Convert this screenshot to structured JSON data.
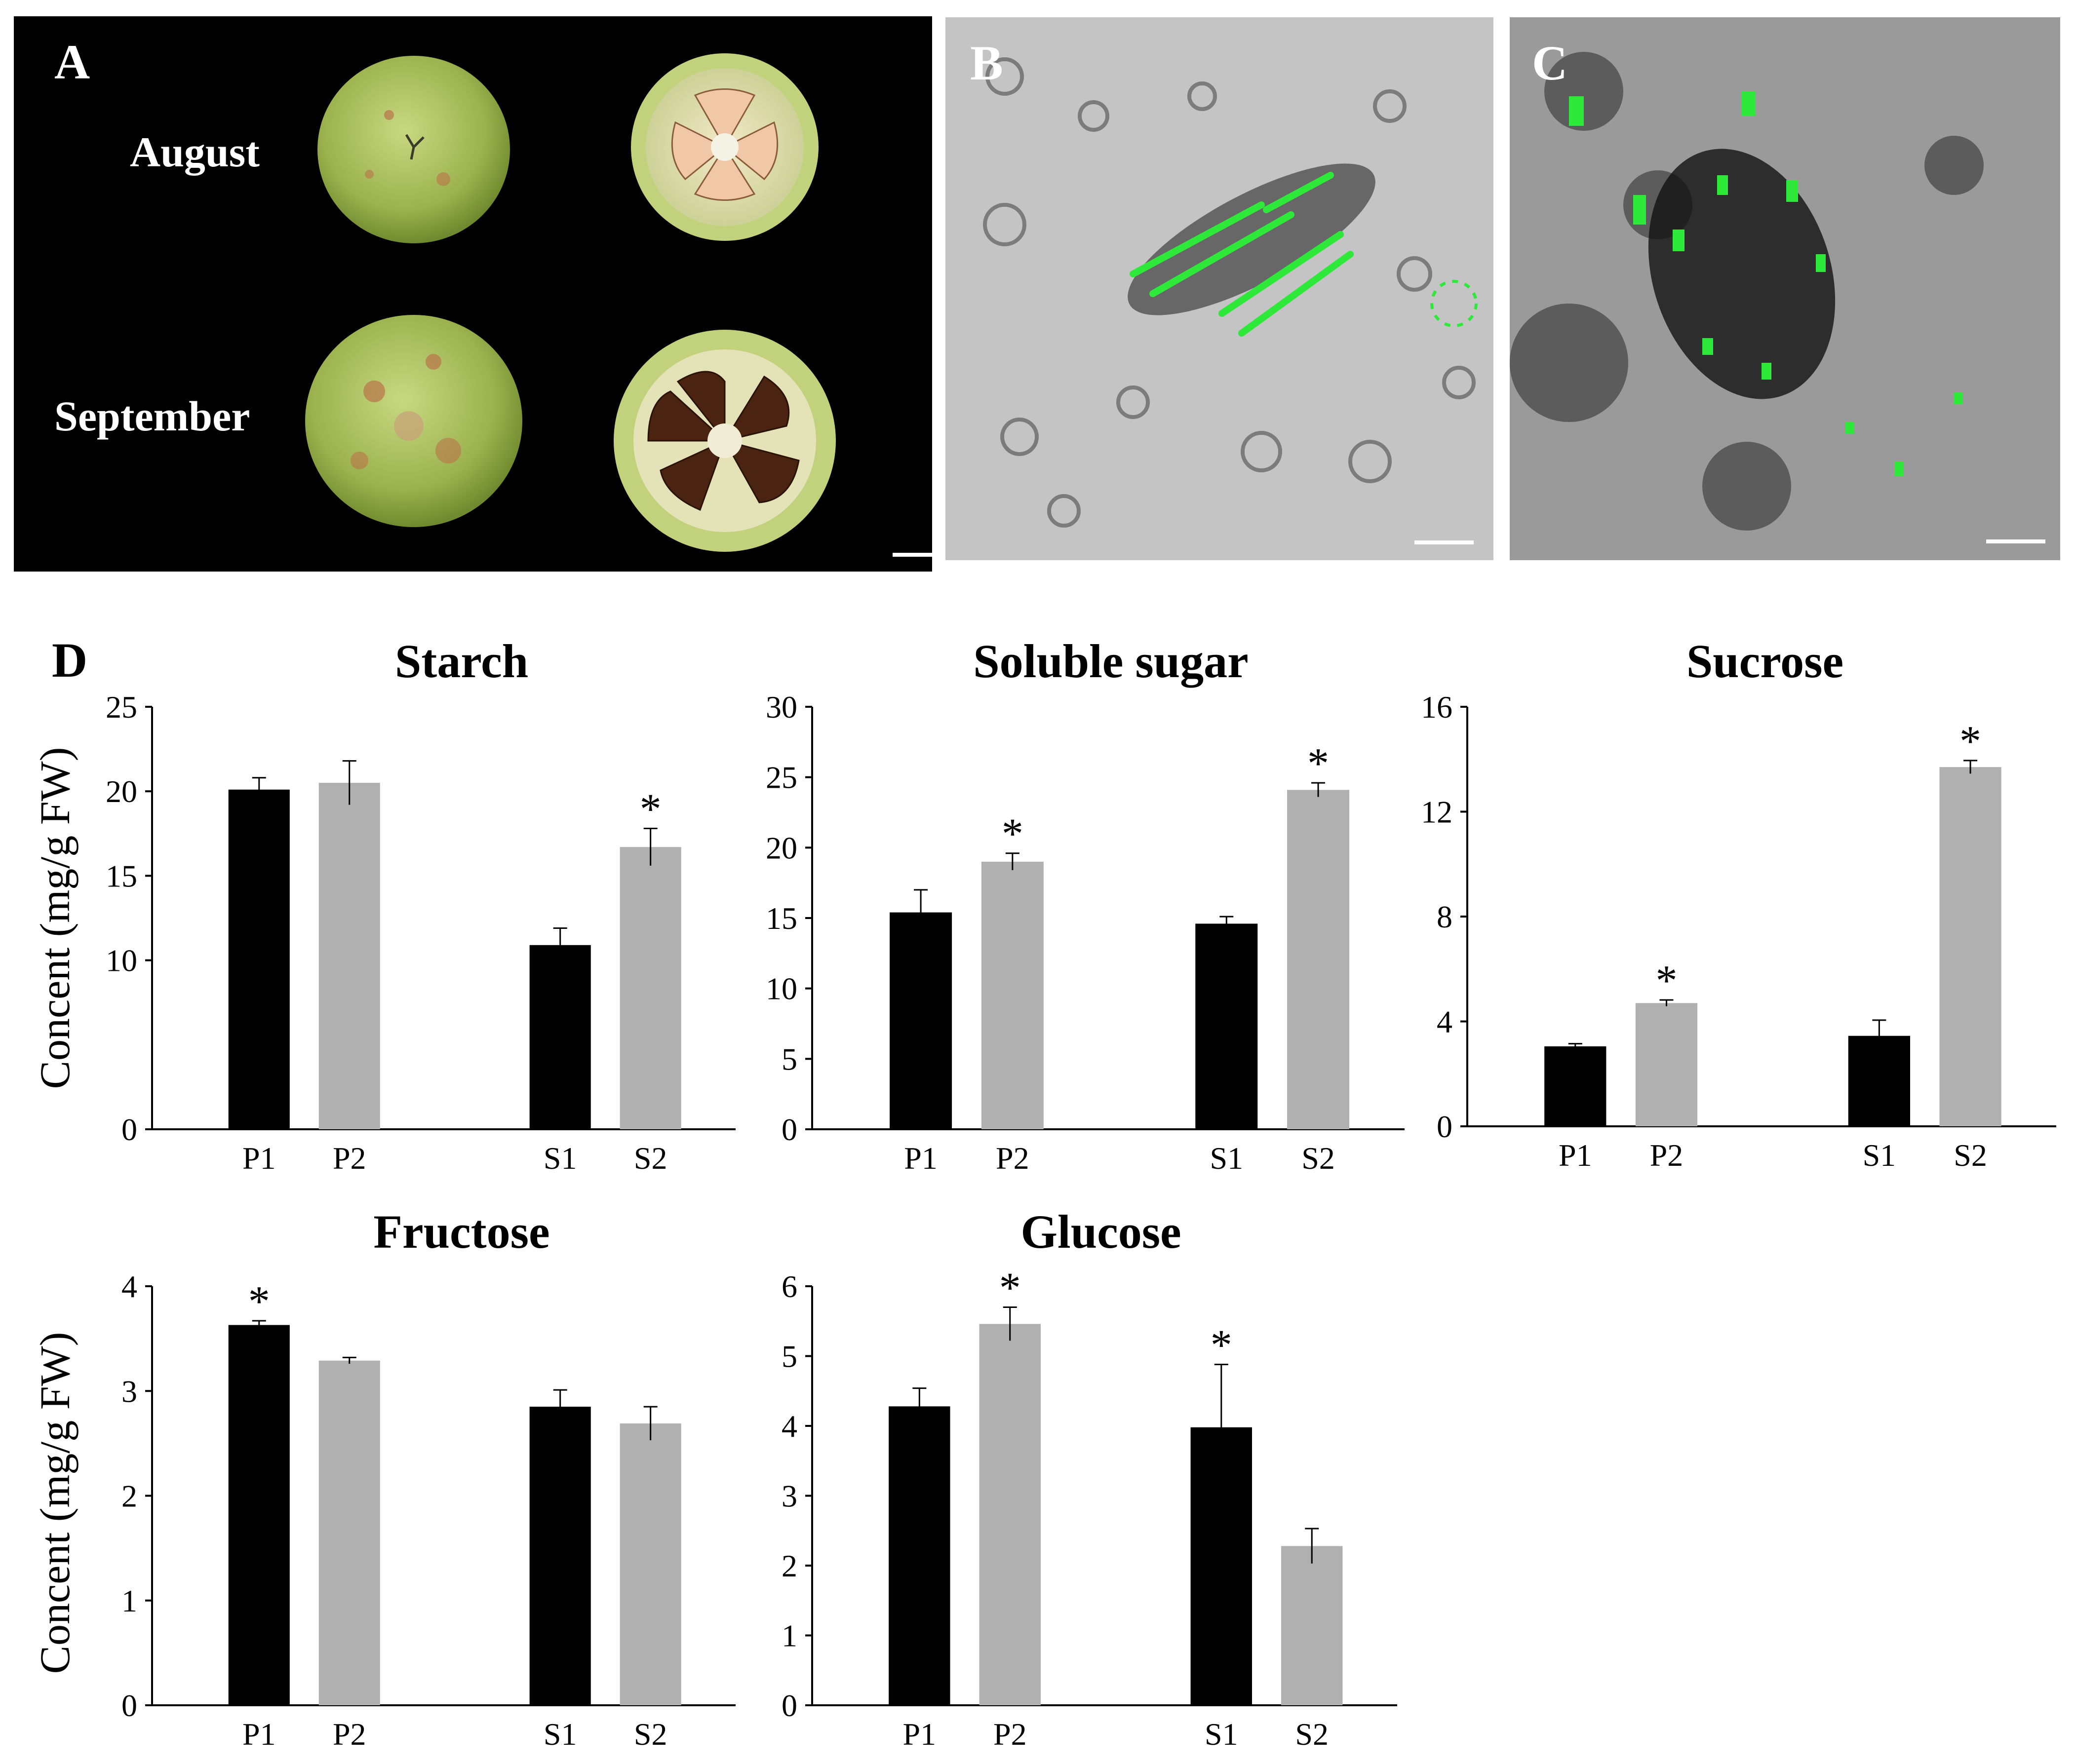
{
  "panels": {
    "a": {
      "letter": "A",
      "row1_label": "August",
      "row2_label": "September"
    },
    "b": {
      "letter": "B"
    },
    "c": {
      "letter": "C"
    },
    "d": {
      "letter": "D"
    }
  },
  "colors": {
    "dark_bar": "#000000",
    "light_bar": "#b0b0b0",
    "fluorescence": "#22e03a",
    "photo_bg": "#000000"
  },
  "chart_data": [
    {
      "type": "bar",
      "title": "Starch",
      "ylabel": "Concent (mg/g FW)",
      "ylim": [
        0,
        25
      ],
      "yticks": [
        0,
        10,
        15,
        20,
        25
      ],
      "categories": [
        "P1",
        "P2",
        "S1",
        "S2"
      ],
      "values": [
        20.1,
        20.5,
        10.9,
        16.7
      ],
      "errors": [
        0.7,
        1.3,
        1.0,
        1.1
      ],
      "significant": [
        false,
        false,
        false,
        true
      ]
    },
    {
      "type": "bar",
      "title": "Soluble sugar",
      "ylabel": "",
      "ylim": [
        0,
        30
      ],
      "yticks": [
        0,
        5,
        10,
        15,
        20,
        25,
        30
      ],
      "categories": [
        "P1",
        "P2",
        "S1",
        "S2"
      ],
      "values": [
        15.4,
        19.0,
        14.6,
        24.1
      ],
      "errors": [
        1.6,
        0.6,
        0.5,
        0.5
      ],
      "significant": [
        false,
        true,
        false,
        true
      ]
    },
    {
      "type": "bar",
      "title": "Sucrose",
      "ylabel": "",
      "ylim": [
        0,
        16
      ],
      "yticks": [
        0,
        4,
        8,
        12,
        16
      ],
      "categories": [
        "P1",
        "P2",
        "S1",
        "S2"
      ],
      "values": [
        3.05,
        4.7,
        3.45,
        13.7
      ],
      "errors": [
        0.1,
        0.12,
        0.6,
        0.25
      ],
      "significant": [
        false,
        true,
        false,
        true
      ]
    },
    {
      "type": "bar",
      "title": "Fructose",
      "ylabel": "Concent (mg/g FW)",
      "ylim": [
        0,
        4
      ],
      "yticks": [
        0,
        1,
        2,
        3,
        4
      ],
      "categories": [
        "P1",
        "P2",
        "S1",
        "S2"
      ],
      "values": [
        3.63,
        3.29,
        2.85,
        2.69
      ],
      "errors": [
        0.04,
        0.03,
        0.16,
        0.16
      ],
      "significant": [
        true,
        false,
        false,
        false
      ]
    },
    {
      "type": "bar",
      "title": "Glucose",
      "ylabel": "",
      "ylim": [
        0,
        6
      ],
      "yticks": [
        0,
        1,
        2,
        3,
        4,
        5,
        6
      ],
      "categories": [
        "P1",
        "P2",
        "S1",
        "S2"
      ],
      "values": [
        4.28,
        5.46,
        3.98,
        2.28
      ],
      "errors": [
        0.26,
        0.24,
        0.9,
        0.25
      ],
      "significant": [
        false,
        true,
        true,
        false
      ]
    }
  ]
}
